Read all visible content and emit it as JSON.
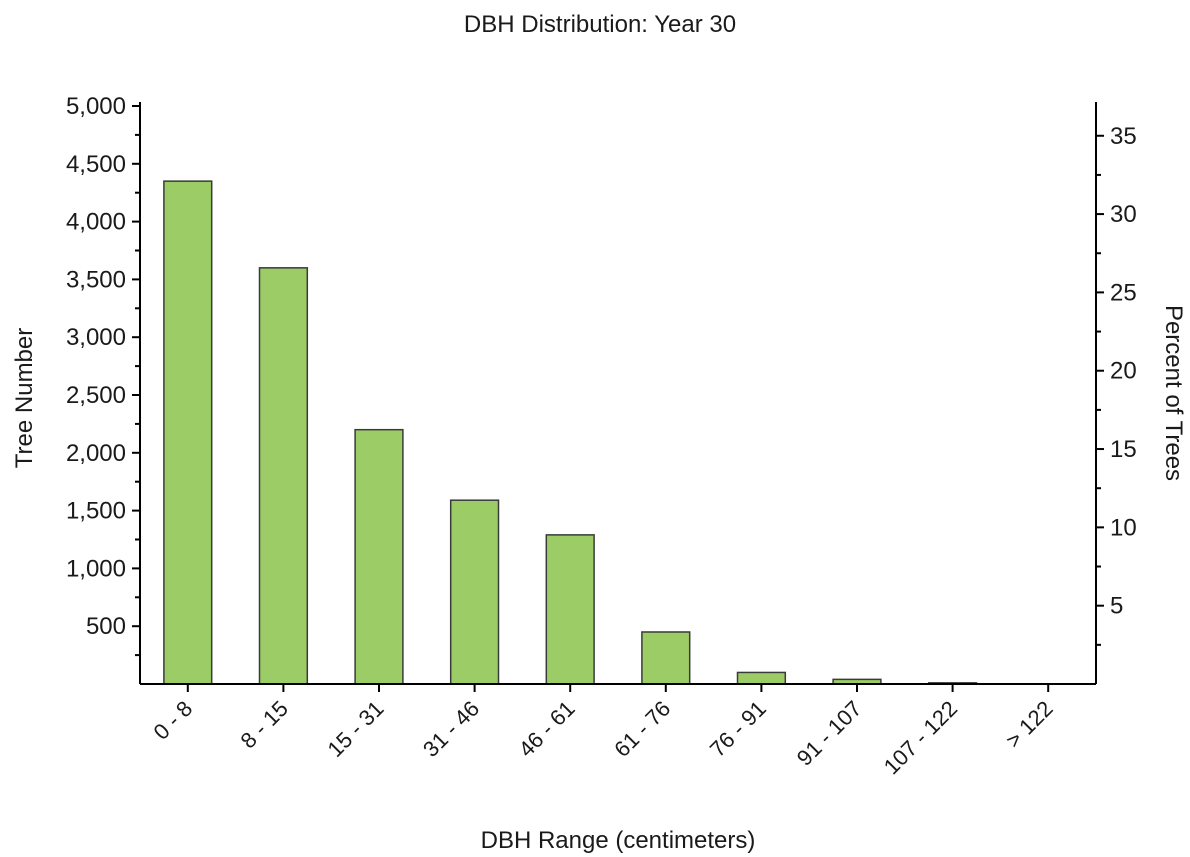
{
  "chart_data": {
    "type": "bar",
    "title": "DBH Distribution: Year 30",
    "xlabel": "DBH Range (centimeters)",
    "ylabel": "Tree Number",
    "y2label": "Percent of Trees",
    "categories": [
      "0 - 8",
      "8 - 15",
      "15 - 31",
      "31 - 46",
      "46 - 61",
      "61 - 76",
      "76 - 91",
      "91 - 107",
      "107 - 122",
      "> 122"
    ],
    "values": [
      4350,
      3600,
      2200,
      1590,
      1290,
      450,
      100,
      40,
      10,
      0
    ],
    "ylim": [
      0,
      5000
    ],
    "yticks": [
      500,
      1000,
      1500,
      2000,
      2500,
      3000,
      3500,
      4000,
      4500,
      5000
    ],
    "ytick_labels": [
      "500",
      "1,000",
      "1,500",
      "2,000",
      "2,500",
      "3,000",
      "3,500",
      "4,000",
      "4,500",
      "5,000"
    ],
    "y2lim": [
      0,
      36.9
    ],
    "y2ticks": [
      5,
      10,
      15,
      20,
      25,
      30,
      35
    ],
    "y2tick_labels": [
      "5",
      "10",
      "15",
      "20",
      "25",
      "30",
      "35"
    ],
    "bar_color": "#9ccc65",
    "grid": false,
    "legend": "none"
  }
}
